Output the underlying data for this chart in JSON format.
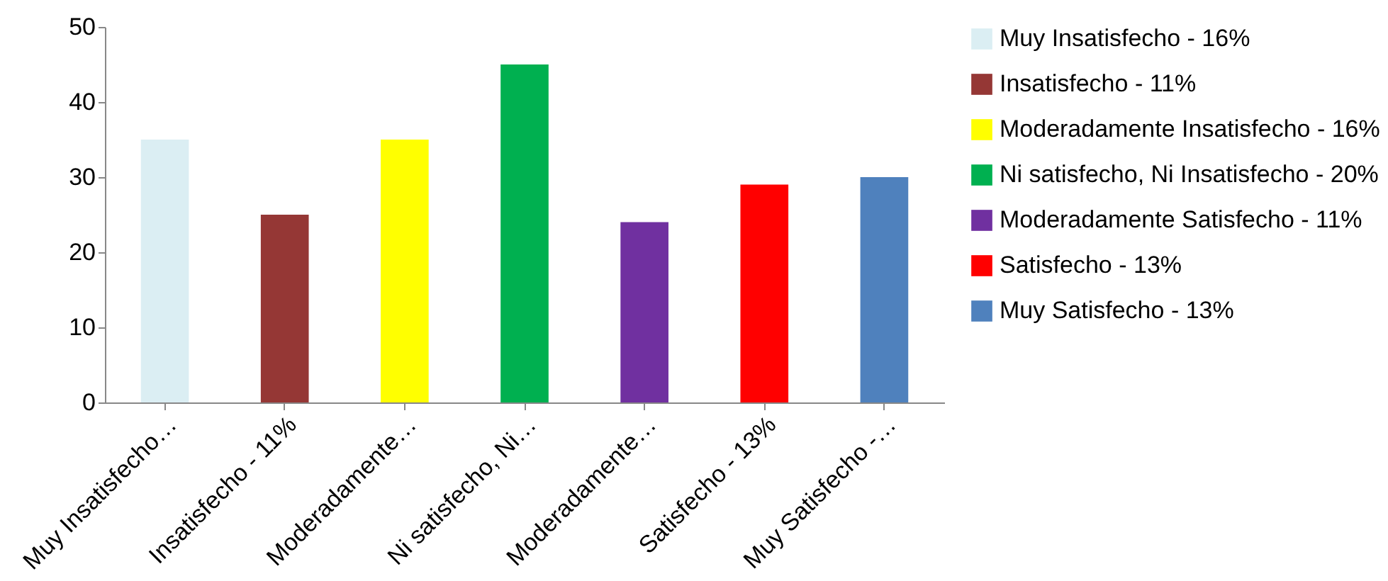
{
  "chart_data": {
    "type": "bar",
    "categories": [
      "Muy Insatisfecho…",
      "Insatisfecho - 11%",
      "Moderadamente…",
      "Ni satisfecho, Ni…",
      "Moderadamente…",
      "Satisfecho - 13%",
      "Muy Satisfecho -…"
    ],
    "series": [
      {
        "name": "Muy Insatisfecho - 16%",
        "color": "#dbeef3",
        "values": [
          35,
          null,
          null,
          null,
          null,
          null,
          null
        ]
      },
      {
        "name": "Insatisfecho - 11%",
        "color": "#953735",
        "values": [
          null,
          25,
          null,
          null,
          null,
          null,
          null
        ]
      },
      {
        "name": "Moderadamente Insatisfecho - 16%",
        "color": "#ffff00",
        "values": [
          null,
          null,
          35,
          null,
          null,
          null,
          null
        ]
      },
      {
        "name": "Ni satisfecho, Ni Insatisfecho - 20%",
        "color": "#00b050",
        "values": [
          null,
          null,
          null,
          45,
          null,
          null,
          null
        ]
      },
      {
        "name": "Moderadamente Satisfecho - 11%",
        "color": "#7030a0",
        "values": [
          null,
          null,
          null,
          null,
          24,
          null,
          null
        ]
      },
      {
        "name": "Satisfecho - 13%",
        "color": "#ff0000",
        "values": [
          null,
          null,
          null,
          null,
          null,
          29,
          null
        ]
      },
      {
        "name": "Muy Satisfecho - 13%",
        "color": "#4f81bd",
        "values": [
          null,
          null,
          null,
          null,
          null,
          null,
          30
        ]
      }
    ],
    "ylim": [
      0,
      50
    ],
    "yticks": [
      0,
      10,
      20,
      30,
      40,
      50
    ],
    "grid": false,
    "legend": "right"
  }
}
